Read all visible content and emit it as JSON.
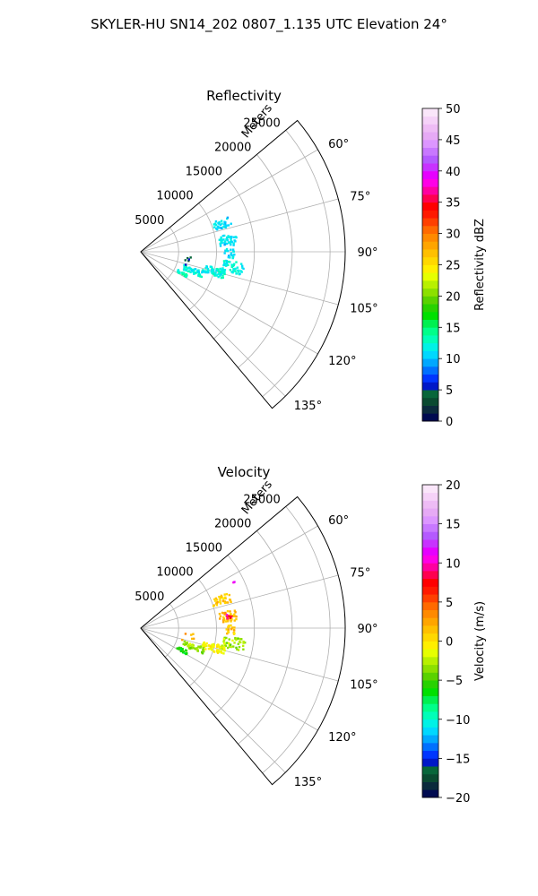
{
  "suptitle": "SKYLER-HU  SN14_202  0807_1.135 UTC Elevation 24°",
  "chart_data": [
    {
      "type": "scatter",
      "title": "Reflectivity",
      "radial_label": "Meters",
      "radial_ticks": [
        "5000",
        "10000",
        "15000",
        "20000",
        "25000"
      ],
      "radial_tick_values": [
        5000,
        10000,
        15000,
        20000,
        25000
      ],
      "rlim": [
        0,
        27000
      ],
      "azimuth_range": [
        50,
        140
      ],
      "angle_ticks": [
        "60°",
        "75°",
        "90°",
        "105°",
        "120°",
        "135°"
      ],
      "angle_tick_values": [
        60,
        75,
        90,
        105,
        120,
        135
      ],
      "grid": true,
      "colorbar": {
        "label": "Reflectivity dBZ",
        "ticks": [
          "0",
          "5",
          "10",
          "15",
          "20",
          "25",
          "30",
          "35",
          "40",
          "45",
          "50"
        ],
        "range": [
          0,
          50
        ],
        "colors": [
          "#000a50",
          "#0b2a3c",
          "#0a4a30",
          "#08663a",
          "#0018c8",
          "#0036ff",
          "#0070ff",
          "#00a8ff",
          "#00d8ff",
          "#00f2e6",
          "#00ffb8",
          "#00ff8a",
          "#00f050",
          "#00e000",
          "#28d200",
          "#5ad200",
          "#8ce000",
          "#b8f000",
          "#e6ff00",
          "#ffef00",
          "#ffd800",
          "#ffc000",
          "#ffa500",
          "#ff8a00",
          "#ff6a00",
          "#ff4000",
          "#ff1a00",
          "#ff0000",
          "#ff0050",
          "#ff00a0",
          "#ff00e6",
          "#e600ff",
          "#c832ff",
          "#b45aff",
          "#c878ff",
          "#dc96ff",
          "#e6aaf5",
          "#eebcf5",
          "#f5d2f8",
          "#fae6fa"
        ]
      },
      "clusters": [
        {
          "az_range": [
            68,
            74
          ],
          "r_range": [
            10000,
            12500
          ],
          "value": 11,
          "count": 35
        },
        {
          "az_range": [
            79,
            86
          ],
          "r_range": [
            10500,
            12800
          ],
          "value": 11,
          "count": 45
        },
        {
          "az_range": [
            88,
            94
          ],
          "r_range": [
            11000,
            12500
          ],
          "value": 11,
          "count": 20
        },
        {
          "az_range": [
            96,
            103
          ],
          "r_range": [
            11000,
            14000
          ],
          "value": 12,
          "count": 45
        },
        {
          "az_range": [
            102,
            108
          ],
          "r_range": [
            8500,
            11500
          ],
          "value": 12,
          "count": 60
        },
        {
          "az_range": [
            107,
            113
          ],
          "r_range": [
            6000,
            9000
          ],
          "value": 12,
          "count": 45
        },
        {
          "az_range": [
            116,
            120
          ],
          "r_range": [
            5500,
            7000
          ],
          "value": 13,
          "count": 20
        },
        {
          "az_range": [
            96,
            108
          ],
          "r_range": [
            5500,
            7200
          ],
          "value": 4,
          "count": 6
        }
      ]
    },
    {
      "type": "scatter",
      "title": "Velocity",
      "radial_label": "Meters",
      "radial_ticks": [
        "5000",
        "10000",
        "15000",
        "20000",
        "25000"
      ],
      "radial_tick_values": [
        5000,
        10000,
        15000,
        20000,
        25000
      ],
      "rlim": [
        0,
        27000
      ],
      "azimuth_range": [
        50,
        140
      ],
      "angle_ticks": [
        "60°",
        "75°",
        "90°",
        "105°",
        "120°",
        "135°"
      ],
      "angle_tick_values": [
        60,
        75,
        90,
        105,
        120,
        135
      ],
      "grid": true,
      "colorbar": {
        "label": "Velocity (m/s)",
        "ticks": [
          "−20",
          "−15",
          "−10",
          "−5",
          "0",
          "5",
          "10",
          "15",
          "20"
        ],
        "range": [
          -20,
          20
        ],
        "colors": [
          "#000a50",
          "#0b2a3c",
          "#0a4a30",
          "#08663a",
          "#0018c8",
          "#0036ff",
          "#0070ff",
          "#00a8ff",
          "#00d8ff",
          "#00f2e6",
          "#00ffb8",
          "#00ff8a",
          "#00f050",
          "#00e000",
          "#28d200",
          "#5ad200",
          "#8ce000",
          "#b8f000",
          "#e6ff00",
          "#ffef00",
          "#ffd800",
          "#ffc000",
          "#ffa500",
          "#ff8a00",
          "#ff6a00",
          "#ff4000",
          "#ff1a00",
          "#ff0000",
          "#ff0050",
          "#ff00a0",
          "#ff00e6",
          "#e600ff",
          "#c832ff",
          "#b45aff",
          "#c878ff",
          "#dc96ff",
          "#e6aaf5",
          "#eebcf5",
          "#f5d2f8",
          "#fae6fa"
        ]
      },
      "clusters": [
        {
          "az_range": [
            68,
            74
          ],
          "r_range": [
            10000,
            12500
          ],
          "value": 1,
          "count": 35
        },
        {
          "az_range": [
            79,
            86
          ],
          "r_range": [
            10500,
            12800
          ],
          "value": 2,
          "count": 45
        },
        {
          "az_range": [
            88,
            94
          ],
          "r_range": [
            11000,
            12500
          ],
          "value": 1,
          "count": 20
        },
        {
          "az_range": [
            96,
            103
          ],
          "r_range": [
            11000,
            14000
          ],
          "value": -3,
          "count": 45
        },
        {
          "az_range": [
            102,
            108
          ],
          "r_range": [
            8500,
            11500
          ],
          "value": -1,
          "count": 60
        },
        {
          "az_range": [
            107,
            113
          ],
          "r_range": [
            6000,
            9000
          ],
          "value": -3,
          "count": 45
        },
        {
          "az_range": [
            116,
            120
          ],
          "r_range": [
            5500,
            7000
          ],
          "value": -6,
          "count": 20
        },
        {
          "az_range": [
            96,
            108
          ],
          "r_range": [
            5500,
            7200
          ],
          "value": 2,
          "count": 6
        },
        {
          "az_range": [
            81,
            84
          ],
          "r_range": [
            11500,
            12300
          ],
          "value": 9,
          "count": 6
        },
        {
          "az_range": [
            63,
            65
          ],
          "r_range": [
            13500,
            13900
          ],
          "value": 11,
          "count": 2
        }
      ]
    }
  ]
}
